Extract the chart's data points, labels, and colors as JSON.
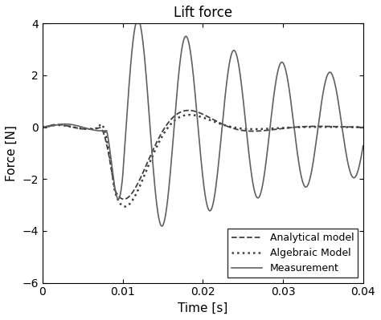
{
  "title": "Lift force",
  "xlabel": "Time [s]",
  "ylabel": "Force [N]",
  "xlim": [
    0,
    0.04
  ],
  "ylim": [
    -6,
    4
  ],
  "xticks": [
    0,
    0.01,
    0.02,
    0.03,
    0.04
  ],
  "yticks": [
    -6,
    -4,
    -2,
    0,
    2,
    4
  ],
  "legend": [
    "Analytical model",
    "Algebraic Model",
    "Measurement"
  ],
  "legend_loc": "lower right",
  "background_color": "#ffffff",
  "figsize": [
    4.74,
    3.99
  ],
  "dpi": 100
}
